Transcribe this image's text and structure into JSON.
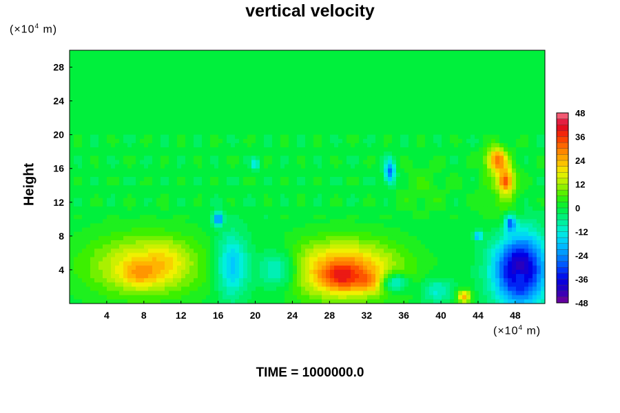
{
  "chart_data": {
    "type": "heatmap",
    "title": "vertical velocity",
    "ylabel": "Height",
    "yunit_prefix": "(×10",
    "yunit_exp": "4",
    "yunit_suffix": " m)",
    "xunit_prefix": "(×10",
    "xunit_exp": "4",
    "xunit_suffix": " m)",
    "footer": "TIME = 1000000.0",
    "xlim": [
      0,
      51.2
    ],
    "ylim": [
      0,
      30
    ],
    "x_ticks": [
      4,
      8,
      12,
      16,
      20,
      24,
      28,
      32,
      36,
      40,
      44,
      48
    ],
    "x_tick_labels": [
      "4",
      "8",
      "12",
      "16",
      "20",
      "24",
      "28",
      "32",
      "36",
      "40",
      "44",
      "48"
    ],
    "y_ticks": [
      4,
      8,
      12,
      16,
      20,
      24,
      28
    ],
    "y_tick_labels": [
      "4",
      "8",
      "12",
      "16",
      "20",
      "24",
      "28"
    ],
    "colorbar": {
      "min": -48,
      "max": 48,
      "levels": [
        48,
        36,
        24,
        12,
        0,
        -12,
        -24,
        -36,
        -48
      ],
      "level_labels": [
        "48",
        "36",
        "24",
        "12",
        "0",
        "-12",
        "-24",
        "-36",
        "-48"
      ]
    },
    "background_value": 0,
    "features": [
      {
        "x": 8,
        "y": 4.5,
        "sx": 4.5,
        "sy": 2.6,
        "value": 18
      },
      {
        "x": 7.5,
        "y": 3.5,
        "sx": 1.5,
        "sy": 1.2,
        "value": 10
      },
      {
        "x": 10.5,
        "y": 5.0,
        "sx": 1.5,
        "sy": 1.6,
        "value": 6
      },
      {
        "x": 17.5,
        "y": 4.5,
        "sx": 1.2,
        "sy": 2.6,
        "value": -20
      },
      {
        "x": 22.5,
        "y": 4.0,
        "sx": 1.6,
        "sy": 1.6,
        "value": -16
      },
      {
        "x": 29.5,
        "y": 4.0,
        "sx": 4.2,
        "sy": 2.4,
        "value": 28
      },
      {
        "x": 29.5,
        "y": 3.0,
        "sx": 1.6,
        "sy": 1.2,
        "value": 14
      },
      {
        "x": 32.5,
        "y": 2.5,
        "sx": 0.8,
        "sy": 0.8,
        "value": 10
      },
      {
        "x": 35.0,
        "y": 2.5,
        "sx": 1.0,
        "sy": 0.8,
        "value": -20
      },
      {
        "x": 39.5,
        "y": 1.5,
        "sx": 1.2,
        "sy": 1.0,
        "value": -12
      },
      {
        "x": 42.5,
        "y": 0.8,
        "sx": 0.5,
        "sy": 0.5,
        "value": 26
      },
      {
        "x": 48.5,
        "y": 4.0,
        "sx": 2.0,
        "sy": 3.0,
        "value": -44
      },
      {
        "x": 48.5,
        "y": 3.2,
        "sx": 0.5,
        "sy": 0.6,
        "value": 10
      },
      {
        "x": 46.0,
        "y": 17.0,
        "sx": 0.8,
        "sy": 1.0,
        "value": 28
      },
      {
        "x": 47.0,
        "y": 14.5,
        "sx": 0.6,
        "sy": 1.0,
        "value": 30
      },
      {
        "x": 46.5,
        "y": 12.5,
        "sx": 1.6,
        "sy": 3.5,
        "value": 6
      },
      {
        "x": 34.5,
        "y": 15.5,
        "sx": 0.4,
        "sy": 1.0,
        "value": -28
      },
      {
        "x": 16.0,
        "y": 10.0,
        "sx": 0.4,
        "sy": 0.5,
        "value": -28
      },
      {
        "x": 47.5,
        "y": 9.5,
        "sx": 0.4,
        "sy": 0.6,
        "value": -26
      },
      {
        "x": 44.0,
        "y": 8.0,
        "sx": 0.3,
        "sy": 0.4,
        "value": -22
      },
      {
        "x": 20.0,
        "y": 16.5,
        "sx": 0.3,
        "sy": 0.5,
        "value": -14
      },
      {
        "x": 38.0,
        "y": 13.5,
        "sx": 2.0,
        "sy": 2.0,
        "value": 4
      }
    ]
  }
}
